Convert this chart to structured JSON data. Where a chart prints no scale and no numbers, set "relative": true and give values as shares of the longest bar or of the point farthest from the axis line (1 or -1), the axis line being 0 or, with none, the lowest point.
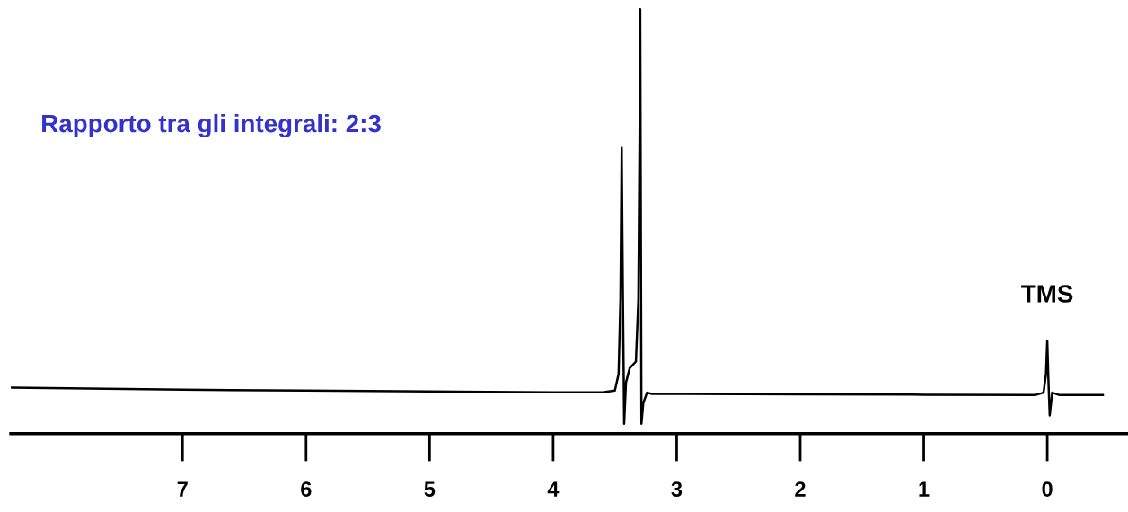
{
  "chart_data": {
    "type": "line",
    "relative": true,
    "x": [
      8.39,
      7,
      6,
      5,
      4,
      3.6,
      3.5,
      3.47,
      3.455,
      3.445,
      3.435,
      3.425,
      3.41,
      3.38,
      3.33,
      3.31,
      3.3,
      3.295,
      3.29,
      3.285,
      3.27,
      3.24,
      3.2,
      2,
      1,
      0.1,
      0.03,
      0.01,
      0.0,
      -0.01,
      -0.02,
      -0.04,
      -0.1,
      -0.45
    ],
    "series": [
      {
        "color": "#000000",
        "values": [
          0.087,
          0.082,
          0.08,
          0.078,
          0.076,
          0.076,
          0.08,
          0.12,
          0.3,
          0.665,
          0.3,
          0.0,
          0.1,
          0.134,
          0.15,
          0.3,
          0.7,
          1.0,
          0.5,
          0.0,
          0.05,
          0.075,
          0.072,
          0.071,
          0.07,
          0.069,
          0.075,
          0.12,
          0.2,
          0.1,
          0.02,
          0.075,
          0.069,
          0.069
        ]
      }
    ],
    "xlim": [
      8.39,
      -0.65
    ],
    "xticks": [
      7,
      6,
      5,
      4,
      3,
      2,
      1,
      0
    ],
    "annotations": [
      "Rapporto tra gli integrali: 2:3",
      {
        "text": "TMS",
        "x": 0,
        "y": 0.2
      }
    ]
  }
}
